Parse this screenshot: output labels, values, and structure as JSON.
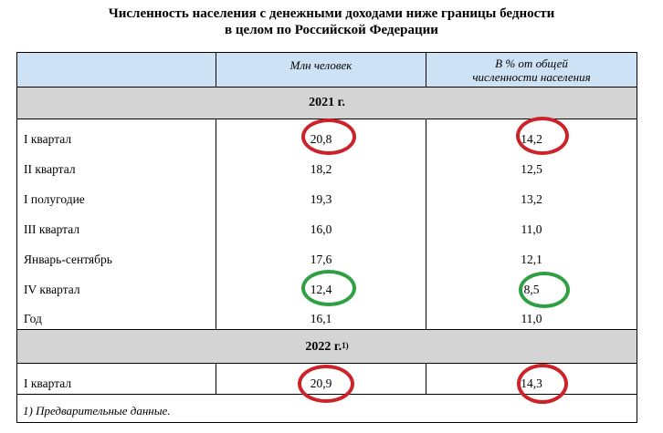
{
  "title": {
    "line1": "Численность населения с денежными доходами ниже границы бедности",
    "line2": "в целом по Российской Федерации"
  },
  "header": {
    "col2": "Млн человек",
    "col3_line1": "В % от общей",
    "col3_line2": "численности населения"
  },
  "sections": [
    {
      "year": "2021 г.",
      "rows": [
        {
          "label": "I квартал",
          "mln": "20,8",
          "pct": "14,2"
        },
        {
          "label": "II квартал",
          "mln": "18,2",
          "pct": "12,5"
        },
        {
          "label": "I полугодие",
          "mln": "19,3",
          "pct": "13,2"
        },
        {
          "label": "III квартал",
          "mln": "16,0",
          "pct": "11,0"
        },
        {
          "label": "Январь-сентябрь",
          "mln": "17,6",
          "pct": "12,1"
        },
        {
          "label": "IV квартал",
          "mln": "12,4",
          "pct": "8,5"
        },
        {
          "label": "Год",
          "mln": "16,1",
          "pct": "11,0"
        }
      ]
    },
    {
      "year": "2022 г.",
      "year_note": "1)",
      "rows": [
        {
          "label": "I квартал",
          "mln": "20,9",
          "pct": "14,3"
        }
      ]
    }
  ],
  "footnote": "1) Предварительные данные.",
  "annotation_colors": {
    "red": "#cc2229",
    "green": "#2ea043"
  }
}
